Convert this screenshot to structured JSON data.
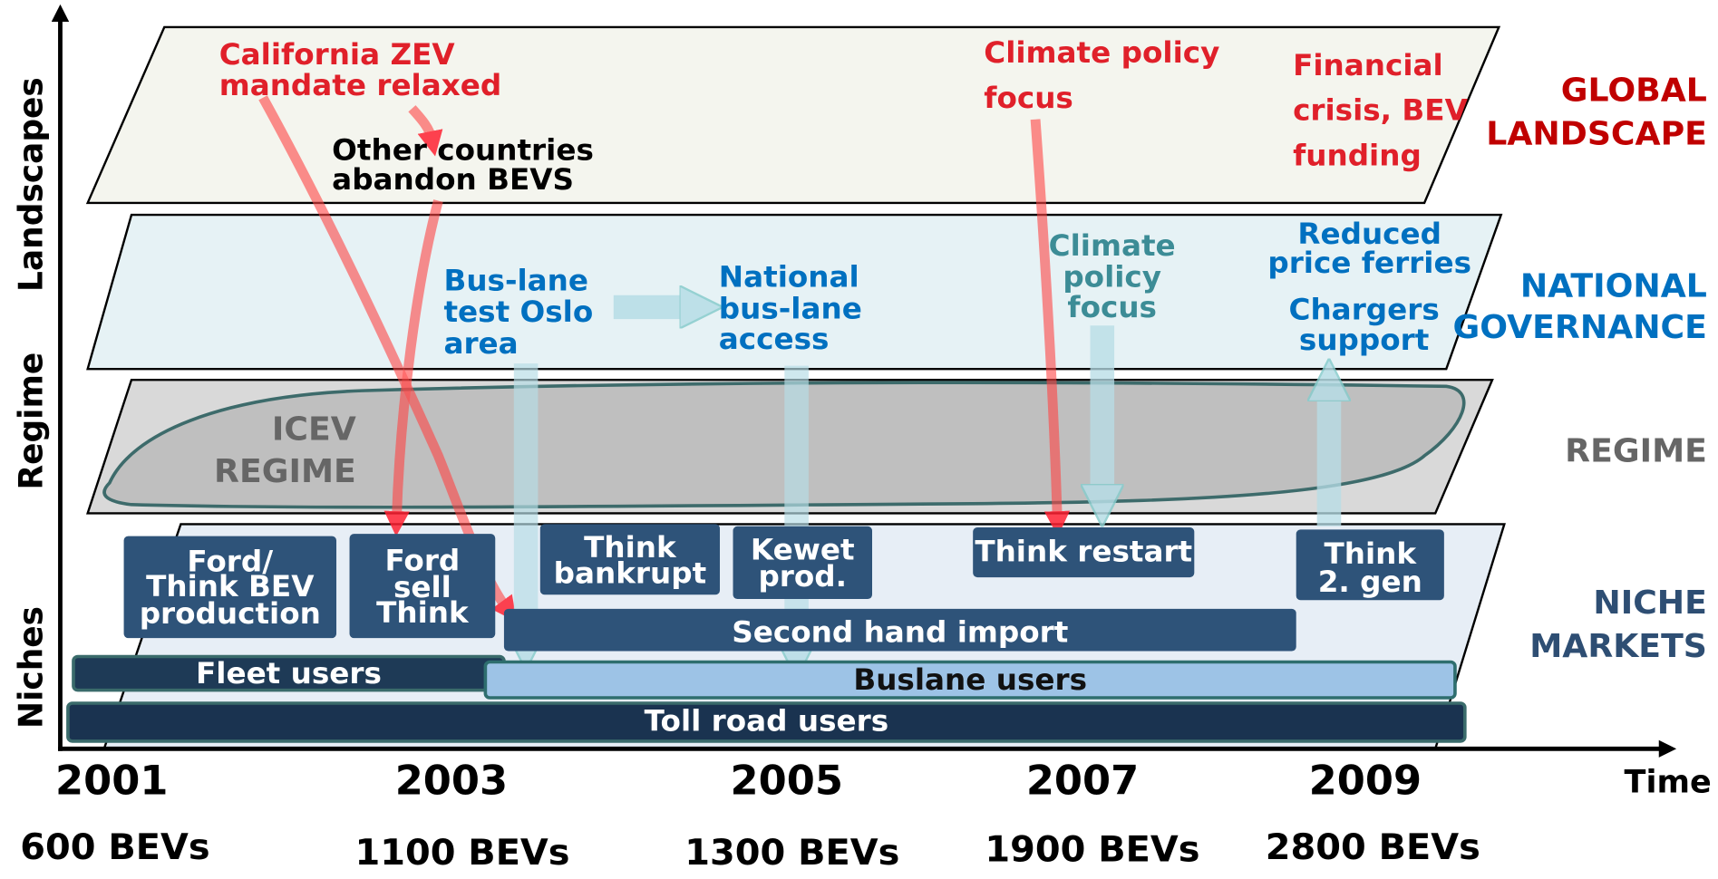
{
  "axes": {
    "y_labels": [
      "Landscapes",
      "Regime",
      "Niches"
    ],
    "x_label": "Time"
  },
  "layers": [
    {
      "lines": [
        "GLOBAL",
        "LANDSCAPE"
      ]
    },
    {
      "lines": [
        "NATIONAL",
        "GOVERNANCE"
      ]
    },
    {
      "lines": [
        "REGIME"
      ]
    },
    {
      "lines": [
        "NICHE",
        "MARKETS"
      ]
    }
  ],
  "regime_blob": {
    "lines": [
      "ICEV",
      "REGIME"
    ]
  },
  "annotations": [
    {
      "lines": [
        "California ZEV",
        "mandate relaxed"
      ]
    },
    {
      "lines": [
        "Other countries",
        "abandon BEVS"
      ]
    },
    {
      "lines": [
        "Climate policy",
        "focus"
      ]
    },
    {
      "lines": [
        "Financial",
        "crisis, BEV",
        "funding"
      ]
    },
    {
      "lines": [
        "Bus-lane",
        "test Oslo",
        "area"
      ]
    },
    {
      "lines": [
        "National",
        "bus-lane",
        "access"
      ]
    },
    {
      "lines": [
        "Climate",
        "policy",
        "focus"
      ]
    },
    {
      "lines": [
        "Reduced",
        "price ferries"
      ]
    },
    {
      "lines": [
        "Chargers",
        "support"
      ]
    }
  ],
  "niche_boxes": [
    {
      "lines": [
        "Ford/",
        "Think BEV",
        "production"
      ]
    },
    {
      "lines": [
        "Ford",
        "sell",
        "Think"
      ]
    },
    {
      "lines": [
        "Think",
        "bankrupt"
      ]
    },
    {
      "lines": [
        "Kewet",
        "prod."
      ]
    },
    {
      "lines": [
        "Think restart"
      ]
    },
    {
      "lines": [
        "Think",
        "2. gen"
      ]
    },
    {
      "lines": [
        "Second hand import"
      ]
    },
    {
      "lines": [
        "Fleet users"
      ]
    },
    {
      "lines": [
        "Buslane users"
      ]
    },
    {
      "lines": [
        "Toll road users"
      ]
    }
  ],
  "timeline": [
    {
      "year": "2001",
      "bevs": "600 BEVs"
    },
    {
      "year": "2003",
      "bevs": "1100 BEVs"
    },
    {
      "year": "2005",
      "bevs": "1300 BEVs"
    },
    {
      "year": "2007",
      "bevs": "1900 BEVs"
    },
    {
      "year": "2009",
      "bevs": "2800 BEVs"
    }
  ]
}
